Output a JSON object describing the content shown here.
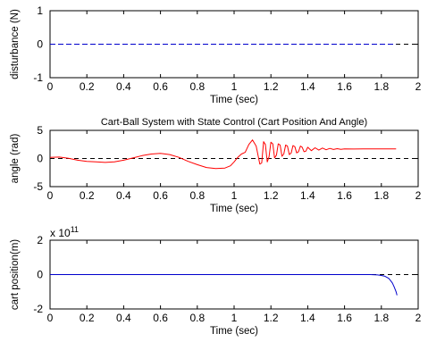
{
  "chart_data": [
    {
      "type": "line",
      "title": "",
      "xlabel": "Time (sec)",
      "ylabel": "disturbance (N)",
      "xlim": [
        0,
        2
      ],
      "ylim": [
        -1,
        1
      ],
      "xticks": [
        "0",
        "0.2",
        "0.4",
        "0.6",
        "0.8",
        "1",
        "1.2",
        "1.4",
        "1.6",
        "1.8",
        "2"
      ],
      "yticks": [
        "1",
        "0",
        "-1"
      ],
      "ytick_values": [
        1,
        0,
        -1
      ],
      "exponent_label": "",
      "reference_line": {
        "y": 0,
        "color": "#000000",
        "style": "dashed"
      },
      "series": [
        {
          "color": "#0000cc",
          "style": "dashed",
          "x": [
            0,
            1.88
          ],
          "y": [
            0,
            0
          ]
        }
      ]
    },
    {
      "type": "line",
      "title": "Cart-Ball System with State Control (Cart Position And Angle)",
      "xlabel": "Time (sec)",
      "ylabel": "angle (rad)",
      "xlim": [
        0,
        2
      ],
      "ylim": [
        -5,
        5
      ],
      "xticks": [
        "0",
        "0.2",
        "0.4",
        "0.6",
        "0.8",
        "1",
        "1.2",
        "1.4",
        "1.6",
        "1.8",
        "2"
      ],
      "yticks": [
        "5",
        "0",
        "-5"
      ],
      "ytick_values": [
        5,
        0,
        -5
      ],
      "exponent_label": "",
      "reference_line": {
        "y": 0,
        "color": "#000000",
        "style": "dashed"
      },
      "series": [
        {
          "color": "#ff0000",
          "style": "solid",
          "x": [
            0,
            0.05,
            0.1,
            0.15,
            0.2,
            0.25,
            0.3,
            0.35,
            0.4,
            0.45,
            0.5,
            0.55,
            0.6,
            0.65,
            0.7,
            0.75,
            0.8,
            0.85,
            0.9,
            0.95,
            0.98,
            1.0,
            1.02,
            1.04,
            1.06,
            1.08,
            1.1,
            1.12,
            1.14,
            1.15,
            1.16,
            1.17,
            1.18,
            1.19,
            1.2,
            1.21,
            1.22,
            1.23,
            1.24,
            1.25,
            1.26,
            1.27,
            1.28,
            1.29,
            1.3,
            1.31,
            1.32,
            1.33,
            1.34,
            1.35,
            1.36,
            1.37,
            1.38,
            1.39,
            1.4,
            1.42,
            1.44,
            1.46,
            1.48,
            1.5,
            1.52,
            1.54,
            1.56,
            1.58,
            1.6,
            1.65,
            1.7,
            1.75,
            1.8,
            1.85,
            1.88
          ],
          "y": [
            0.2,
            0.25,
            0.05,
            -0.3,
            -0.5,
            -0.6,
            -0.7,
            -0.6,
            -0.3,
            0.1,
            0.5,
            0.8,
            0.9,
            0.7,
            0.2,
            -0.5,
            -1.1,
            -1.6,
            -1.8,
            -1.7,
            -1.3,
            -0.6,
            0.2,
            0.8,
            1.1,
            2.5,
            3.3,
            2.2,
            -1.0,
            -0.8,
            3.0,
            2.5,
            -0.6,
            0.3,
            2.9,
            2.6,
            0.1,
            0.6,
            2.6,
            2.4,
            0.4,
            0.8,
            2.4,
            2.2,
            0.7,
            1.0,
            2.3,
            2.1,
            1.0,
            1.2,
            2.2,
            2.0,
            1.2,
            1.3,
            2.0,
            1.4,
            1.9,
            1.5,
            1.85,
            1.55,
            1.8,
            1.6,
            1.75,
            1.62,
            1.7,
            1.68,
            1.7,
            1.7,
            1.7,
            1.7,
            1.7
          ]
        }
      ]
    },
    {
      "type": "line",
      "title": "",
      "xlabel": "Time (sec)",
      "ylabel": "cart position(m)",
      "xlim": [
        0,
        2
      ],
      "ylim": [
        -2,
        2
      ],
      "xticks": [
        "0",
        "0.2",
        "0.4",
        "0.6",
        "0.8",
        "1",
        "1.2",
        "1.4",
        "1.6",
        "1.8",
        "2"
      ],
      "yticks": [
        "2",
        "0",
        "-2"
      ],
      "ytick_values": [
        2,
        0,
        -2
      ],
      "exponent_label": "x 10^11",
      "exponent_base": "x 10",
      "exponent_power": "11",
      "reference_line": {
        "y": 0,
        "color": "#000000",
        "style": "dashed"
      },
      "series": [
        {
          "color": "#0000cc",
          "style": "solid",
          "x": [
            0,
            1.6,
            1.74,
            1.78,
            1.8,
            1.82,
            1.84,
            1.85,
            1.86,
            1.87,
            1.88,
            1.885
          ],
          "y": [
            0,
            0,
            0,
            -0.02,
            -0.05,
            -0.1,
            -0.22,
            -0.35,
            -0.5,
            -0.72,
            -1.0,
            -1.2
          ]
        }
      ]
    }
  ]
}
